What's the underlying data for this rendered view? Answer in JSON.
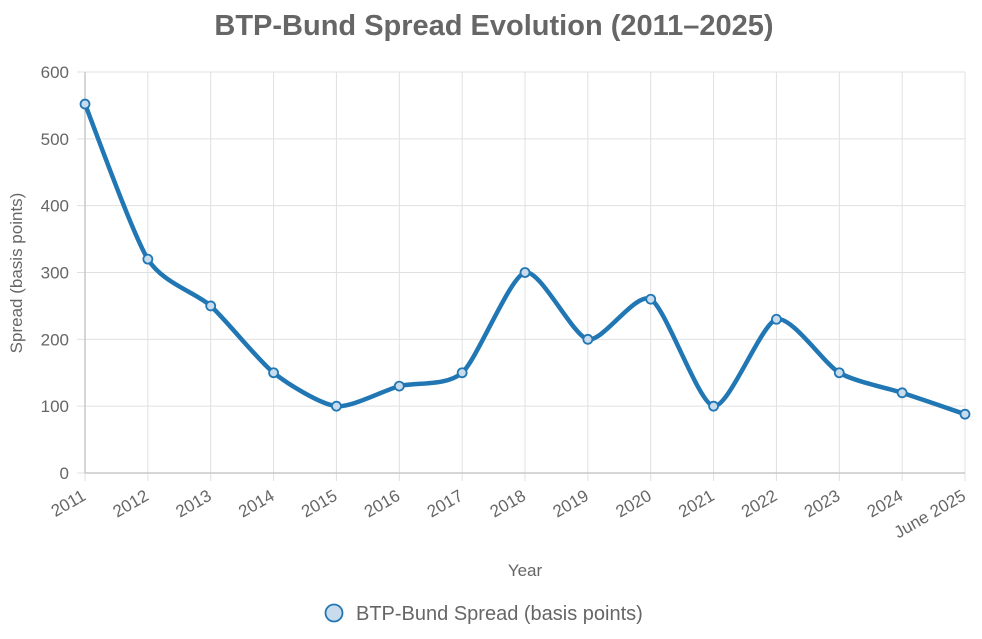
{
  "chart_data": {
    "type": "line",
    "title": "BTP-Bund Spread Evolution (2011–2025)",
    "xlabel": "Year",
    "ylabel": "Spread (basis points)",
    "categories": [
      "2011",
      "2012",
      "2013",
      "2014",
      "2015",
      "2016",
      "2017",
      "2018",
      "2019",
      "2020",
      "2021",
      "2022",
      "2023",
      "2024",
      "June 2025"
    ],
    "series": [
      {
        "name": "BTP-Bund Spread (basis points)",
        "values": [
          552,
          320,
          250,
          150,
          100,
          130,
          150,
          300,
          200,
          260,
          100,
          230,
          150,
          120,
          88
        ],
        "color": "#2077b4",
        "point_fill": "#c8dcee"
      }
    ],
    "ylim": [
      0,
      600
    ],
    "yticks": [
      0,
      100,
      200,
      300,
      400,
      500,
      600
    ],
    "grid": true,
    "legend_position": "bottom"
  }
}
